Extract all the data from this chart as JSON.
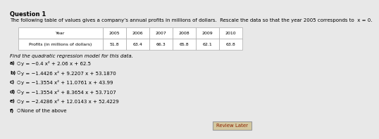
{
  "title": "Question 1",
  "intro": "The following table of values gives a company’s annual profits in millions of dollars.  Rescale the data so that the year 2005 corresponds to  x = 0.",
  "table_headers": [
    "Year",
    "2005",
    "2006",
    "2007",
    "2008",
    "2009",
    "2010"
  ],
  "table_row_label": "Profits (in millions of dollars)",
  "table_values": [
    "51.8",
    "63.4",
    "66.3",
    "65.8",
    "62.1",
    "63.8"
  ],
  "find_text": "Find the quadratic regression model for this data.",
  "options": [
    [
      "a)",
      "○",
      "y = −0.4 x² + 2.06 x + 62.5"
    ],
    [
      "b)",
      "○",
      "y = −1.4426 x² + 9.2207 x + 53.1870"
    ],
    [
      "c)",
      "○",
      "y = −1.3554 x² + 11.0761 x + 43.99"
    ],
    [
      "d)",
      "○",
      "y = −1.3554 x² + 8.3654 x + 53.7107"
    ],
    [
      "e)",
      "○",
      "y = −2.4286 x² + 12.0143 x + 52.4229"
    ],
    [
      "f)",
      "○",
      "None of the above"
    ]
  ],
  "review_later_text": "Review Later",
  "bg_color": "#e8e8e8",
  "white": "#ffffff",
  "table_border_color": "#aaaaaa",
  "review_btn_bg": "#c8a060",
  "review_btn_text": "#8b0000"
}
